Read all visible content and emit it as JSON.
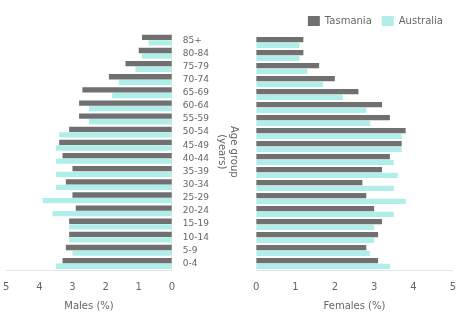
{
  "chart_data": [
    {
      "type": "bar",
      "orientation": "horizontal",
      "categories": [
        "0-4",
        "5-9",
        "10-14",
        "15-19",
        "20-24",
        "25-29",
        "30-34",
        "35-39",
        "40-44",
        "45-49",
        "50-54",
        "55-59",
        "60-64",
        "65-69",
        "70-74",
        "75-79",
        "80-84",
        "85+"
      ],
      "series": [
        {
          "name": "Tasmania",
          "color": "#707070",
          "values": [
            3.3,
            3.2,
            3.1,
            3.1,
            2.9,
            3.0,
            3.2,
            3.0,
            3.3,
            3.4,
            3.1,
            2.8,
            2.8,
            2.7,
            1.9,
            1.4,
            1.0,
            0.9
          ]
        },
        {
          "name": "Australia",
          "color": "#b0eeea",
          "values": [
            3.5,
            3.0,
            3.1,
            3.1,
            3.6,
            3.9,
            3.5,
            3.5,
            3.5,
            3.5,
            3.4,
            2.5,
            2.5,
            1.8,
            1.6,
            1.1,
            0.9,
            0.7
          ]
        }
      ],
      "xlabel": "Males (%)",
      "ylabel": "Age group\n(years)",
      "xlim": [
        5,
        0
      ],
      "xticks": [
        5,
        4,
        3,
        2,
        1,
        0
      ],
      "grid": false
    },
    {
      "type": "bar",
      "orientation": "horizontal",
      "categories": [
        "0-4",
        "5-9",
        "10-14",
        "15-19",
        "20-24",
        "25-29",
        "30-34",
        "35-39",
        "40-44",
        "45-49",
        "50-54",
        "55-59",
        "60-64",
        "65-69",
        "70-74",
        "75-79",
        "80-84",
        "85+"
      ],
      "series": [
        {
          "name": "Tasmania",
          "color": "#707070",
          "values": [
            3.1,
            2.8,
            3.1,
            3.2,
            3.0,
            2.8,
            2.7,
            3.2,
            3.4,
            3.7,
            3.8,
            3.4,
            3.2,
            2.6,
            2.0,
            1.6,
            1.2,
            1.2
          ]
        },
        {
          "name": "Australia",
          "color": "#b0eeea",
          "values": [
            3.4,
            2.9,
            3.0,
            3.0,
            3.5,
            3.8,
            3.5,
            3.6,
            3.5,
            3.7,
            3.7,
            2.9,
            2.8,
            2.2,
            1.7,
            1.3,
            1.1,
            1.1
          ]
        }
      ],
      "xlabel": "Females (%)",
      "xlim": [
        0,
        5
      ],
      "xticks": [
        0,
        1,
        2,
        3,
        4,
        5
      ],
      "grid": false,
      "legend": "upper right",
      "tick_labels": "x"
    }
  ]
}
